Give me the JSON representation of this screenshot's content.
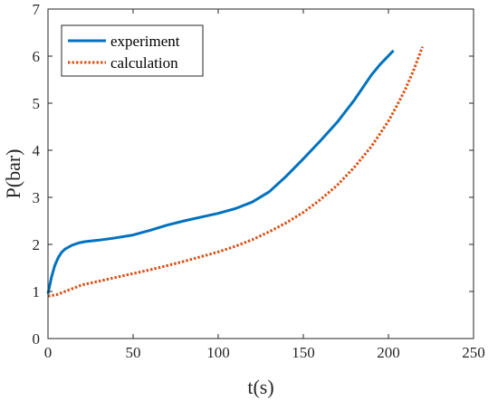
{
  "chart_data": {
    "type": "line",
    "xlabel": "t(s)",
    "ylabel": "P(bar)",
    "xlim": [
      0,
      250
    ],
    "ylim": [
      0,
      7
    ],
    "xticks": [
      0,
      50,
      100,
      150,
      200,
      250
    ],
    "yticks": [
      0,
      1,
      2,
      3,
      4,
      5,
      6,
      7
    ],
    "grid": false,
    "legend_position": "top-left",
    "series": [
      {
        "name": "experiment",
        "style": "solid",
        "color": "#0072BD",
        "x": [
          0,
          2,
          4,
          6,
          8,
          10,
          14,
          18,
          22,
          30,
          40,
          50,
          60,
          70,
          80,
          90,
          100,
          110,
          120,
          130,
          140,
          150,
          160,
          170,
          180,
          190,
          195,
          203
        ],
        "y": [
          0.95,
          1.3,
          1.55,
          1.72,
          1.83,
          1.9,
          1.98,
          2.03,
          2.06,
          2.09,
          2.14,
          2.2,
          2.3,
          2.41,
          2.5,
          2.58,
          2.66,
          2.76,
          2.9,
          3.12,
          3.45,
          3.82,
          4.2,
          4.6,
          5.07,
          5.6,
          5.82,
          6.12
        ]
      },
      {
        "name": "calculation",
        "style": "dotted",
        "color": "#D95319",
        "x": [
          0,
          5,
          10,
          15,
          20,
          30,
          40,
          50,
          60,
          70,
          80,
          90,
          100,
          110,
          120,
          130,
          140,
          150,
          160,
          170,
          180,
          190,
          200,
          205,
          210,
          215,
          220
        ],
        "y": [
          0.9,
          0.93,
          1.0,
          1.07,
          1.14,
          1.22,
          1.3,
          1.38,
          1.46,
          1.55,
          1.64,
          1.74,
          1.84,
          1.96,
          2.1,
          2.27,
          2.46,
          2.68,
          2.95,
          3.26,
          3.64,
          4.08,
          4.62,
          4.95,
          5.3,
          5.72,
          6.2
        ]
      }
    ]
  }
}
